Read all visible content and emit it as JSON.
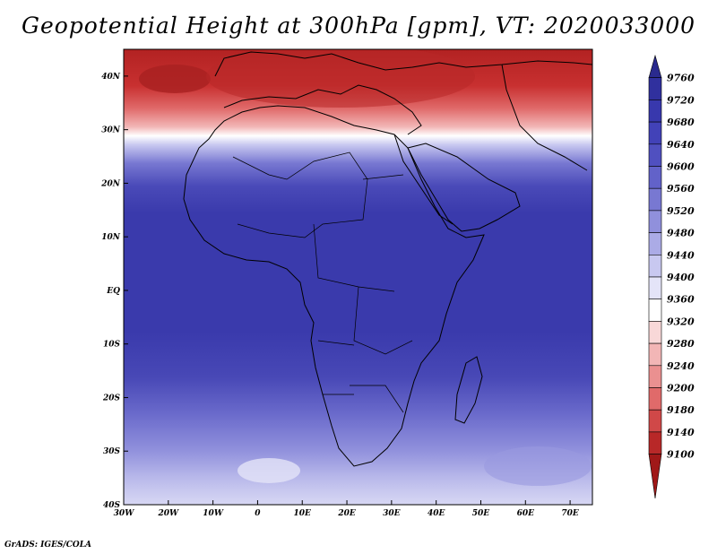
{
  "title": "Geopotential Height at 300hPa [gpm], VT: 2020033000",
  "footer": "GrADS: IGES/COLA",
  "map": {
    "lon_range": [
      -30,
      75
    ],
    "lat_range": [
      -40,
      45
    ],
    "lat_ticks": [
      {
        "value": 40,
        "label": "40N"
      },
      {
        "value": 30,
        "label": "30N"
      },
      {
        "value": 20,
        "label": "20N"
      },
      {
        "value": 10,
        "label": "10N"
      },
      {
        "value": 0,
        "label": "EQ"
      },
      {
        "value": -10,
        "label": "10S"
      },
      {
        "value": -20,
        "label": "20S"
      },
      {
        "value": -30,
        "label": "30S"
      },
      {
        "value": -40,
        "label": "40S"
      }
    ],
    "lon_ticks": [
      {
        "value": -30,
        "label": "30W"
      },
      {
        "value": -20,
        "label": "20W"
      },
      {
        "value": -10,
        "label": "10W"
      },
      {
        "value": 0,
        "label": "0"
      },
      {
        "value": 10,
        "label": "10E"
      },
      {
        "value": 20,
        "label": "20E"
      },
      {
        "value": 30,
        "label": "30E"
      },
      {
        "value": 40,
        "label": "40E"
      },
      {
        "value": 50,
        "label": "50E"
      },
      {
        "value": 60,
        "label": "60E"
      },
      {
        "value": 70,
        "label": "70E"
      }
    ]
  },
  "colorbar": {
    "labels": [
      "9760",
      "9720",
      "9680",
      "9640",
      "9600",
      "9560",
      "9520",
      "9480",
      "9440",
      "9400",
      "9360",
      "9320",
      "9280",
      "9240",
      "9200",
      "9180",
      "9140",
      "9100"
    ],
    "colors": [
      "#2a2a8e",
      "#30309e",
      "#3838ad",
      "#4242b8",
      "#5050c0",
      "#6262c9",
      "#7878d2",
      "#9090dc",
      "#ababe6",
      "#c8c8f0",
      "#e4e4f8",
      "#ffffff",
      "#f8d8d8",
      "#f2b6b6",
      "#ea9090",
      "#e06a6a",
      "#d04848",
      "#b82828",
      "#a01818"
    ]
  }
}
